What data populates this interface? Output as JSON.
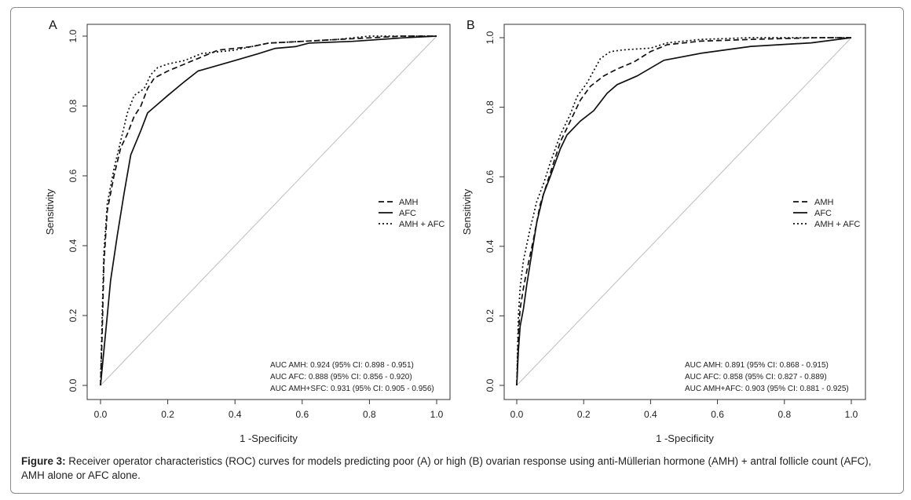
{
  "caption": {
    "label": "Figure 3:",
    "text": "Receiver operator characteristics (ROC) curves for models predicting poor (A) or high (B) ovarian response using anti-Müllerian hormone (AMH) + antral follicle count (AFC), AMH alone or AFC alone."
  },
  "chart_data": [
    {
      "type": "line",
      "panel_label": "A",
      "xlabel": "1 -Specificity",
      "ylabel": "Sensitivity",
      "xlim": [
        0,
        1
      ],
      "ylim": [
        0,
        1
      ],
      "xticks": [
        "0.0",
        "0.2",
        "0.4",
        "0.6",
        "0.8",
        "1.0"
      ],
      "yticks": [
        "0.0",
        "0.2",
        "0.4",
        "0.6",
        "0.8",
        "1.0"
      ],
      "grid": false,
      "legend_position": "right",
      "reference_line": {
        "x": [
          0,
          1
        ],
        "y": [
          0,
          1
        ],
        "color": "#bdbdbd"
      },
      "series": [
        {
          "name": "AMH",
          "style": "dashed",
          "x": [
            0,
            0.005,
            0.01,
            0.02,
            0.04,
            0.06,
            0.08,
            0.1,
            0.12,
            0.14,
            0.16,
            0.2,
            0.25,
            0.3,
            0.35,
            0.45,
            0.5,
            0.6,
            0.7,
            0.8,
            0.9,
            1.0
          ],
          "y": [
            0,
            0.15,
            0.35,
            0.5,
            0.6,
            0.68,
            0.72,
            0.77,
            0.8,
            0.85,
            0.88,
            0.9,
            0.92,
            0.94,
            0.96,
            0.97,
            0.98,
            0.985,
            0.99,
            0.995,
            1.0,
            1.0
          ]
        },
        {
          "name": "AFC",
          "style": "solid",
          "x": [
            0,
            0.01,
            0.02,
            0.03,
            0.05,
            0.07,
            0.09,
            0.12,
            0.14,
            0.2,
            0.25,
            0.29,
            0.4,
            0.47,
            0.52,
            0.58,
            0.62,
            0.75,
            0.9,
            1.0
          ],
          "y": [
            0,
            0.1,
            0.2,
            0.3,
            0.43,
            0.55,
            0.66,
            0.73,
            0.78,
            0.83,
            0.87,
            0.9,
            0.93,
            0.95,
            0.965,
            0.97,
            0.98,
            0.985,
            0.995,
            1.0
          ]
        },
        {
          "name": "AMH + AFC",
          "style": "dotted",
          "x": [
            0,
            0.005,
            0.01,
            0.02,
            0.04,
            0.06,
            0.08,
            0.1,
            0.13,
            0.15,
            0.17,
            0.2,
            0.25,
            0.3,
            0.4,
            0.5,
            0.6,
            0.7,
            0.8,
            1.0
          ],
          "y": [
            0,
            0.2,
            0.38,
            0.52,
            0.62,
            0.7,
            0.78,
            0.83,
            0.85,
            0.89,
            0.91,
            0.92,
            0.93,
            0.95,
            0.96,
            0.98,
            0.985,
            0.99,
            1.0,
            1.0
          ]
        }
      ],
      "annotations": [
        "AUC AMH: 0.924 (95% CI: 0.898 - 0.951)",
        "AUC AFC: 0.888 (95% CI: 0.856 - 0.920)",
        "AUC AMH+SFC: 0.931 (95% CI: 0.905 - 0.956)"
      ]
    },
    {
      "type": "line",
      "panel_label": "B",
      "xlabel": "1 -Specificity",
      "ylabel": "Sensitivity",
      "xlim": [
        0,
        1
      ],
      "ylim": [
        0,
        1
      ],
      "xticks": [
        "0.0",
        "0.2",
        "0.4",
        "0.6",
        "0.8",
        "1.0"
      ],
      "yticks": [
        "0.0",
        "0.2",
        "0.4",
        "0.6",
        "0.8",
        "1.0"
      ],
      "grid": false,
      "legend_position": "right",
      "reference_line": {
        "x": [
          0,
          1
        ],
        "y": [
          0,
          1
        ],
        "color": "#bdbdbd"
      },
      "series": [
        {
          "name": "AMH",
          "style": "dashed",
          "x": [
            0,
            0.005,
            0.01,
            0.02,
            0.03,
            0.05,
            0.07,
            0.1,
            0.13,
            0.16,
            0.19,
            0.22,
            0.26,
            0.3,
            0.35,
            0.4,
            0.45,
            0.55,
            0.7,
            0.9,
            1.0
          ],
          "y": [
            0,
            0.15,
            0.22,
            0.28,
            0.33,
            0.42,
            0.52,
            0.61,
            0.7,
            0.76,
            0.82,
            0.86,
            0.89,
            0.91,
            0.93,
            0.96,
            0.98,
            0.99,
            0.995,
            1.0,
            1.0
          ]
        },
        {
          "name": "AFC",
          "style": "solid",
          "x": [
            0,
            0.005,
            0.01,
            0.02,
            0.03,
            0.04,
            0.06,
            0.08,
            0.1,
            0.13,
            0.15,
            0.19,
            0.23,
            0.27,
            0.3,
            0.36,
            0.44,
            0.55,
            0.7,
            0.88,
            1.0
          ],
          "y": [
            0,
            0.1,
            0.17,
            0.22,
            0.29,
            0.35,
            0.47,
            0.55,
            0.6,
            0.68,
            0.72,
            0.76,
            0.79,
            0.84,
            0.865,
            0.89,
            0.935,
            0.955,
            0.975,
            0.985,
            1.0
          ]
        },
        {
          "name": "AMH + AFC",
          "style": "dotted",
          "x": [
            0,
            0.005,
            0.01,
            0.02,
            0.04,
            0.06,
            0.08,
            0.1,
            0.13,
            0.16,
            0.18,
            0.21,
            0.25,
            0.28,
            0.32,
            0.4,
            0.45,
            0.55,
            0.7,
            0.9,
            1.0
          ],
          "y": [
            0,
            0.2,
            0.28,
            0.36,
            0.45,
            0.53,
            0.58,
            0.64,
            0.72,
            0.78,
            0.83,
            0.87,
            0.94,
            0.96,
            0.965,
            0.97,
            0.985,
            0.995,
            1.0,
            1.0,
            1.0
          ]
        }
      ],
      "annotations": [
        "AUC AMH: 0.891 (95% CI: 0.868 - 0.915)",
        "AUC AFC: 0.858 (95% CI: 0.827 - 0.889)",
        "AUC AMH+AFC: 0.903 (95% CI: 0.881 - 0.925)"
      ]
    }
  ]
}
